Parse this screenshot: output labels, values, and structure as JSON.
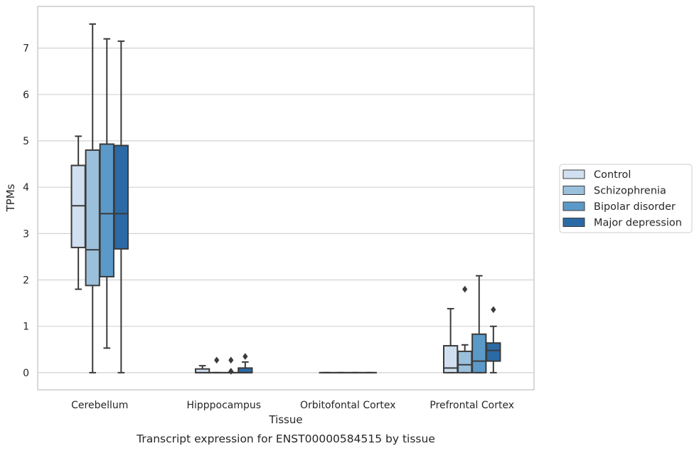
{
  "chart_data": {
    "type": "box",
    "caption": "Transcript expression for ENST00000584515 by tissue",
    "xlabel": "Tissue",
    "ylabel": "TPMs",
    "ylim": [
      -0.37,
      7.9
    ],
    "yticks": [
      0,
      1,
      2,
      3,
      4,
      5,
      6,
      7
    ],
    "grid": true,
    "legend_position": "right",
    "categories": [
      "Cerebellum",
      "Hipppocampus",
      "Orbitofontal Cortex",
      "Prefrontal Cortex"
    ],
    "series": [
      {
        "name": "Control",
        "color": "#d0e0f0",
        "boxes": [
          {
            "whislo": 1.8,
            "q1": 2.7,
            "med": 3.6,
            "q3": 4.47,
            "whishi": 5.1,
            "fliers": []
          },
          {
            "whislo": 0.0,
            "q1": 0.0,
            "med": 0.0,
            "q3": 0.08,
            "whishi": 0.15,
            "fliers": []
          },
          {
            "whislo": 0.0,
            "q1": 0.0,
            "med": 0.0,
            "q3": 0.0,
            "whishi": 0.0,
            "fliers": []
          },
          {
            "whislo": 0.0,
            "q1": 0.0,
            "med": 0.1,
            "q3": 0.58,
            "whishi": 1.38,
            "fliers": []
          }
        ]
      },
      {
        "name": "Schizophrenia",
        "color": "#9ac0dc",
        "boxes": [
          {
            "whislo": 0.0,
            "q1": 1.88,
            "med": 2.65,
            "q3": 4.8,
            "whishi": 7.52,
            "fliers": []
          },
          {
            "whislo": 0.0,
            "q1": 0.0,
            "med": 0.0,
            "q3": 0.0,
            "whishi": 0.0,
            "fliers": [
              0.27
            ]
          },
          {
            "whislo": 0.0,
            "q1": 0.0,
            "med": 0.0,
            "q3": 0.0,
            "whishi": 0.0,
            "fliers": []
          },
          {
            "whislo": 0.0,
            "q1": 0.0,
            "med": 0.17,
            "q3": 0.46,
            "whishi": 0.6,
            "fliers": [
              1.8
            ]
          }
        ]
      },
      {
        "name": "Bipolar disorder",
        "color": "#5b9ac8",
        "boxes": [
          {
            "whislo": 0.53,
            "q1": 2.07,
            "med": 3.43,
            "q3": 4.93,
            "whishi": 7.2,
            "fliers": []
          },
          {
            "whislo": 0.0,
            "q1": 0.0,
            "med": 0.0,
            "q3": 0.0,
            "whishi": 0.0,
            "fliers": [
              0.27,
              0.03
            ]
          },
          {
            "whislo": 0.0,
            "q1": 0.0,
            "med": 0.0,
            "q3": 0.0,
            "whishi": 0.0,
            "fliers": []
          },
          {
            "whislo": 0.0,
            "q1": 0.0,
            "med": 0.25,
            "q3": 0.83,
            "whishi": 2.09,
            "fliers": []
          }
        ]
      },
      {
        "name": "Major depression",
        "color": "#2c6aa6",
        "boxes": [
          {
            "whislo": 0.0,
            "q1": 2.67,
            "med": 3.43,
            "q3": 4.9,
            "whishi": 7.15,
            "fliers": []
          },
          {
            "whislo": 0.0,
            "q1": 0.0,
            "med": 0.0,
            "q3": 0.1,
            "whishi": 0.23,
            "fliers": [
              0.35
            ]
          },
          {
            "whislo": 0.0,
            "q1": 0.0,
            "med": 0.0,
            "q3": 0.0,
            "whishi": 0.0,
            "fliers": []
          },
          {
            "whislo": 0.0,
            "q1": 0.25,
            "med": 0.48,
            "q3": 0.64,
            "whishi": 1.0,
            "fliers": [
              1.36
            ]
          }
        ]
      }
    ]
  }
}
